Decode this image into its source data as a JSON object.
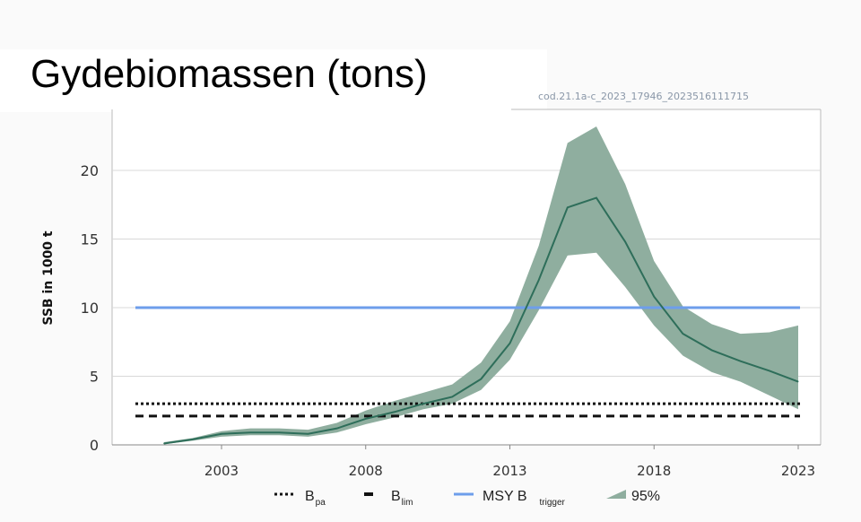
{
  "chart_data": {
    "type": "area",
    "title": "Gydebiomassen (tons)",
    "code_label": "cod.21.1a-c_2023_17946_2023516111715",
    "ylabel": "SSB in 1000 t",
    "xlabel": "",
    "ylim": [
      0,
      24
    ],
    "xlim": [
      2001,
      2023.7
    ],
    "yticks": [
      0,
      5,
      10,
      15,
      20
    ],
    "xticks": [
      2003,
      2008,
      2013,
      2018,
      2023
    ],
    "grid": "horizontal",
    "x": [
      2001,
      2002,
      2003,
      2004,
      2005,
      2006,
      2007,
      2008,
      2009,
      2010,
      2011,
      2012,
      2013,
      2014,
      2015,
      2016,
      2017,
      2018,
      2019,
      2020,
      2021,
      2022,
      2023
    ],
    "ssb": [
      0.1,
      0.4,
      0.8,
      0.9,
      0.9,
      0.8,
      1.2,
      1.9,
      2.4,
      3.0,
      3.5,
      4.8,
      7.4,
      12.0,
      17.3,
      18.0,
      14.8,
      10.8,
      8.1,
      6.9,
      6.1,
      5.4,
      4.6
    ],
    "upper": [
      0.2,
      0.5,
      1.0,
      1.2,
      1.2,
      1.1,
      1.6,
      2.5,
      3.2,
      3.8,
      4.4,
      6.0,
      9.0,
      14.5,
      22.0,
      23.2,
      19.0,
      13.4,
      10.1,
      8.8,
      8.1,
      8.2,
      8.7
    ],
    "lower": [
      0.05,
      0.3,
      0.6,
      0.7,
      0.7,
      0.6,
      0.9,
      1.5,
      2.0,
      2.6,
      3.0,
      4.0,
      6.2,
      9.8,
      13.8,
      14.0,
      11.5,
      8.7,
      6.5,
      5.3,
      4.6,
      3.6,
      2.6
    ],
    "reference_lines": {
      "Bpa": 3.0,
      "Blim": 2.1,
      "MSY_Btrigger": 10
    },
    "legend": {
      "placement": "bottom",
      "items": [
        {
          "main": "B",
          "sub": "pa"
        },
        {
          "main": "B",
          "sub": "lim"
        },
        {
          "main": "MSY B",
          "sub": "trigger"
        },
        {
          "main": "95%",
          "sub": ""
        }
      ]
    },
    "colors": {
      "band": "#8fae9f",
      "line": "#2e6e5a",
      "msy": "#6d9eeb",
      "ref": "#111111"
    }
  }
}
